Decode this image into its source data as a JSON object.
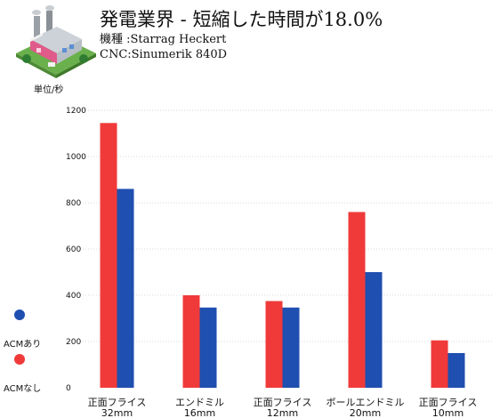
{
  "header": {
    "title": "発電業界 - 短縮した時間が18.0%",
    "machine": "機種 :Starrag Heckert",
    "cnc": "CNC:Sinumerik 840D",
    "icon": "factory-icon"
  },
  "unit_label": "単位/秒",
  "legend": [
    {
      "label": "ACMあり",
      "color": "#1f4fb0"
    },
    {
      "label": "ACMなし",
      "color": "#f03a3a"
    }
  ],
  "colors": {
    "with_acm": "#1f4fb0",
    "without_acm": "#f03a3a"
  },
  "chart_data": {
    "type": "bar",
    "title": "",
    "xlabel": "",
    "ylabel": "単位/秒",
    "ylim": [
      0,
      1200
    ],
    "yticks": [
      0,
      200,
      400,
      600,
      800,
      1000,
      1200
    ],
    "grid": true,
    "legend_position": "left",
    "categories": [
      [
        "正面フライス",
        "32mm"
      ],
      [
        "エンドミル",
        "16mm"
      ],
      [
        "正面フライス",
        "12mm"
      ],
      [
        "ボールエンドミル",
        "20mm"
      ],
      [
        "正面フライス",
        "10mm"
      ]
    ],
    "series": [
      {
        "name": "ACMなし",
        "color": "#f03a3a",
        "values": [
          1145,
          400,
          375,
          760,
          205
        ]
      },
      {
        "name": "ACMあり",
        "color": "#1f4fb0",
        "values": [
          860,
          347,
          347,
          500,
          150
        ]
      }
    ]
  }
}
